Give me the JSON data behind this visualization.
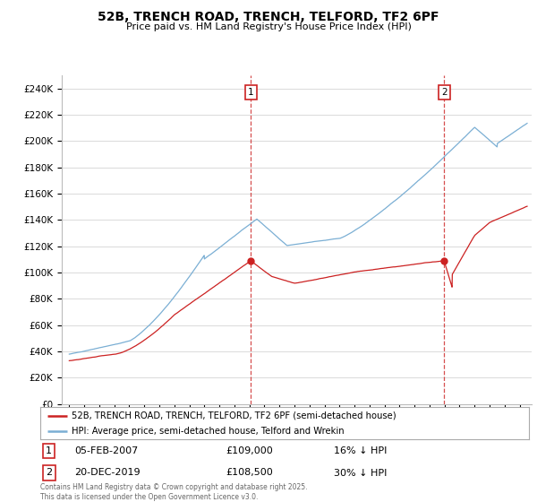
{
  "title": "52B, TRENCH ROAD, TRENCH, TELFORD, TF2 6PF",
  "subtitle": "Price paid vs. HM Land Registry's House Price Index (HPI)",
  "ytick_labels": [
    "£0",
    "£20K",
    "£40K",
    "£60K",
    "£80K",
    "£100K",
    "£120K",
    "£140K",
    "£160K",
    "£180K",
    "£200K",
    "£220K",
    "£240K"
  ],
  "yticks": [
    0,
    20000,
    40000,
    60000,
    80000,
    100000,
    120000,
    140000,
    160000,
    180000,
    200000,
    220000,
    240000
  ],
  "hpi_color": "#7bafd4",
  "property_color": "#cc2222",
  "marker1_x": 2007.09,
  "marker2_x": 2019.97,
  "legend_property": "52B, TRENCH ROAD, TRENCH, TELFORD, TF2 6PF (semi-detached house)",
  "legend_hpi": "HPI: Average price, semi-detached house, Telford and Wrekin",
  "footer": "Contains HM Land Registry data © Crown copyright and database right 2025.\nThis data is licensed under the Open Government Licence v3.0.",
  "background_color": "#ffffff",
  "grid_color": "#cccccc",
  "ann1_num": "1",
  "ann1_date": "05-FEB-2007",
  "ann1_price": "£109,000",
  "ann1_hpi": "16% ↓ HPI",
  "ann2_num": "2",
  "ann2_date": "20-DEC-2019",
  "ann2_price": "£108,500",
  "ann2_hpi": "30% ↓ HPI"
}
